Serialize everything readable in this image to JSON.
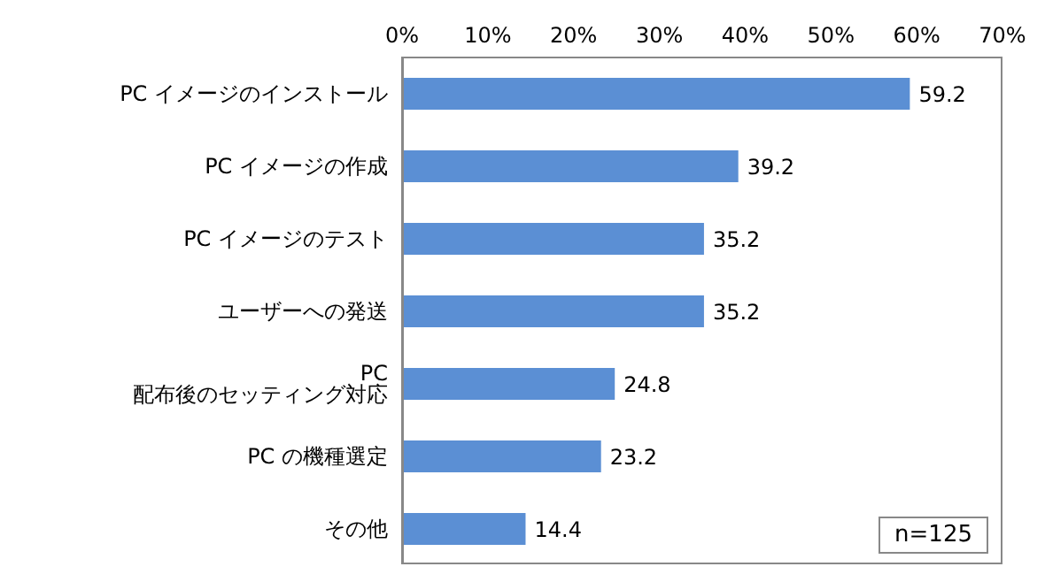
{
  "chart_data": {
    "type": "bar",
    "orientation": "horizontal",
    "categories": [
      "PC イメージのインストール",
      "PC イメージの作成",
      "PC イメージのテスト",
      "ユーザーへの発送",
      "PC 配布後のセッティング対応",
      "PC の機種選定",
      "その他"
    ],
    "values": [
      59.2,
      39.2,
      35.2,
      35.2,
      24.8,
      23.2,
      14.4
    ],
    "color": "#5b8fd4",
    "xlim": [
      0,
      70
    ],
    "xticks": [
      {
        "value": 0,
        "label": "0%"
      },
      {
        "value": 10,
        "label": "10%"
      },
      {
        "value": 20,
        "label": "20%"
      },
      {
        "value": 30,
        "label": "30%"
      },
      {
        "value": 40,
        "label": "40%"
      },
      {
        "value": 50,
        "label": "50%"
      },
      {
        "value": 60,
        "label": "60%"
      },
      {
        "value": 70,
        "label": "70%"
      }
    ],
    "data_labels": true,
    "grid": false,
    "annotations": [
      "n=125"
    ]
  }
}
